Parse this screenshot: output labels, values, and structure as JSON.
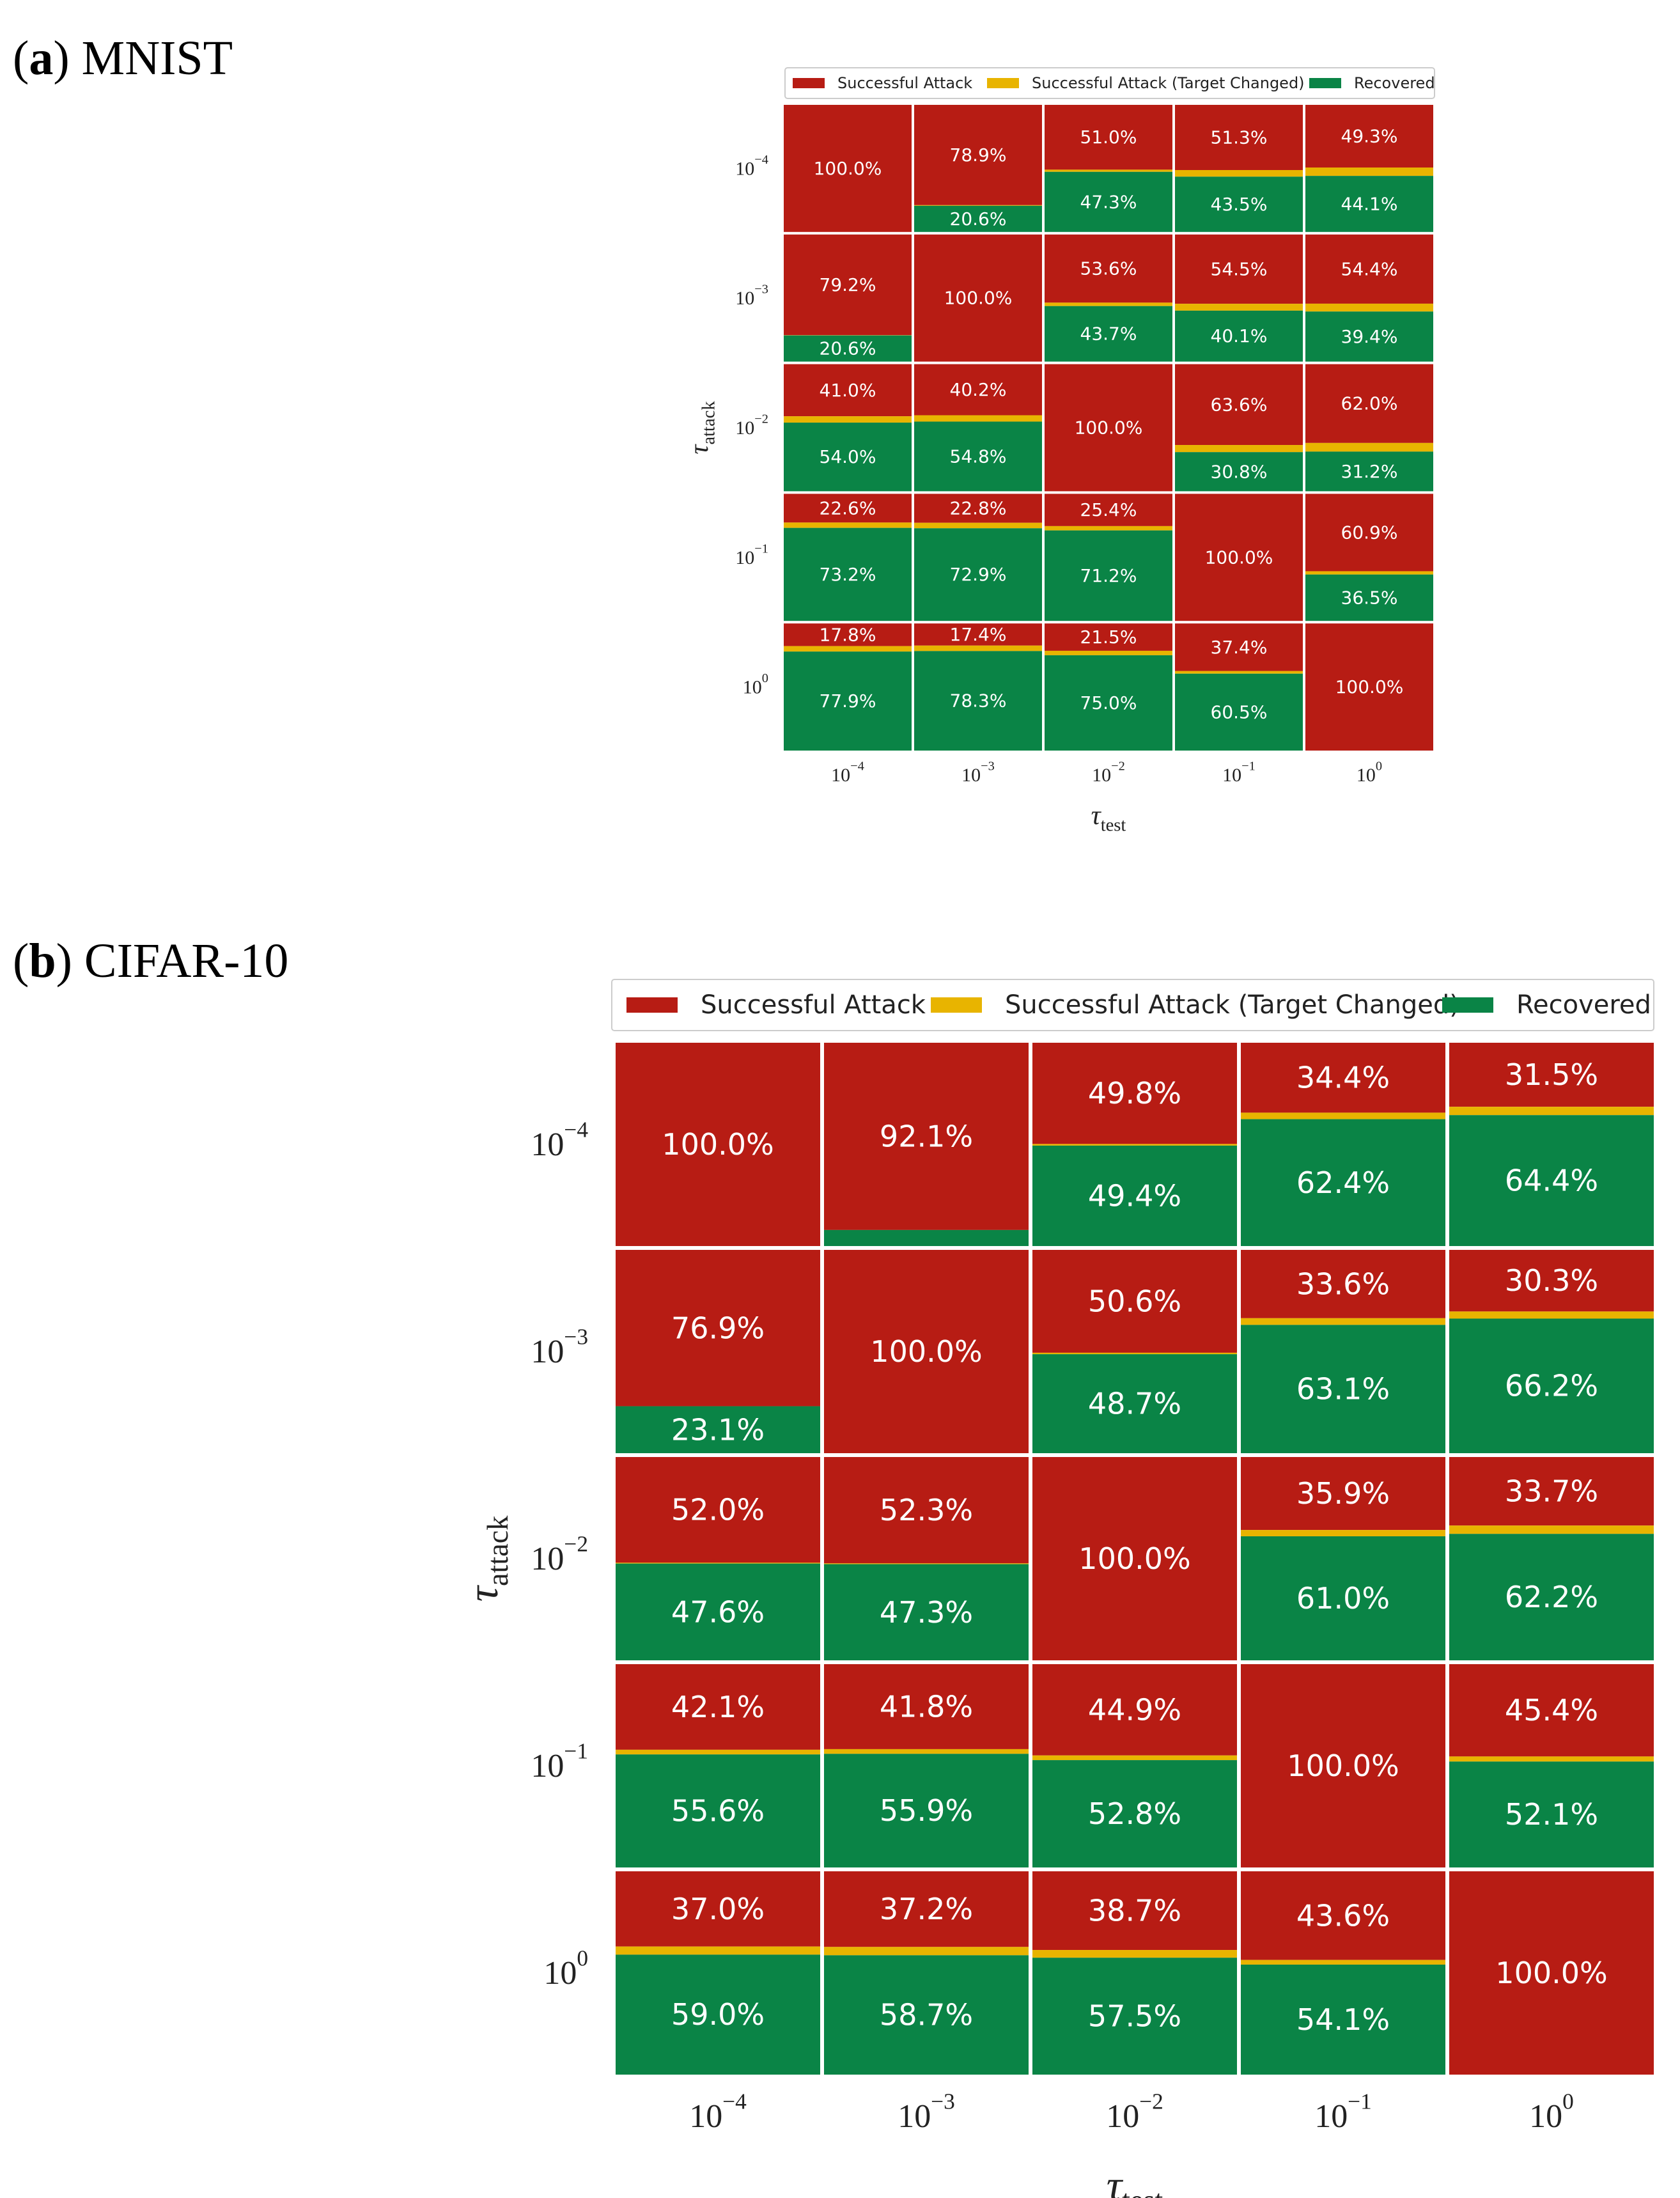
{
  "colors": {
    "successful_attack": "#b71c14",
    "target_changed": "#e8b400",
    "recovered": "#0a8446",
    "cell_text": "#ffffff",
    "axis_text": "#222222"
  },
  "legend_labels": [
    "Successful Attack",
    "Successful Attack (Target Changed)",
    "Recovered"
  ],
  "chart_data": [
    {
      "type": "stacked-bar-grid",
      "panel_letter": "a",
      "panel_name": "MNIST",
      "xlabel_base": "τ",
      "xlabel_sub": "test",
      "ylabel_base": "τ",
      "ylabel_sub": "attack",
      "x_ticks": [
        {
          "base": "10",
          "exp": "−4"
        },
        {
          "base": "10",
          "exp": "−3"
        },
        {
          "base": "10",
          "exp": "−2"
        },
        {
          "base": "10",
          "exp": "−1"
        },
        {
          "base": "10",
          "exp": "0"
        }
      ],
      "y_ticks": [
        {
          "base": "10",
          "exp": "−4"
        },
        {
          "base": "10",
          "exp": "−3"
        },
        {
          "base": "10",
          "exp": "−2"
        },
        {
          "base": "10",
          "exp": "−1"
        },
        {
          "base": "10",
          "exp": "0"
        }
      ],
      "cells": [
        [
          {
            "attack": 100.0,
            "recovered": 0.0
          },
          {
            "attack": 78.9,
            "recovered": 20.6
          },
          {
            "attack": 51.0,
            "recovered": 47.3
          },
          {
            "attack": 51.3,
            "recovered": 43.5
          },
          {
            "attack": 49.3,
            "recovered": 44.1
          }
        ],
        [
          {
            "attack": 79.2,
            "recovered": 20.6
          },
          {
            "attack": 100.0,
            "recovered": 0.0
          },
          {
            "attack": 53.6,
            "recovered": 43.7
          },
          {
            "attack": 54.5,
            "recovered": 40.1
          },
          {
            "attack": 54.4,
            "recovered": 39.4
          }
        ],
        [
          {
            "attack": 41.0,
            "recovered": 54.0
          },
          {
            "attack": 40.2,
            "recovered": 54.8
          },
          {
            "attack": 100.0,
            "recovered": 0.0
          },
          {
            "attack": 63.6,
            "recovered": 30.8
          },
          {
            "attack": 62.0,
            "recovered": 31.2
          }
        ],
        [
          {
            "attack": 22.6,
            "recovered": 73.2
          },
          {
            "attack": 22.8,
            "recovered": 72.9
          },
          {
            "attack": 25.4,
            "recovered": 71.2
          },
          {
            "attack": 100.0,
            "recovered": 0.0
          },
          {
            "attack": 60.9,
            "recovered": 36.5
          }
        ],
        [
          {
            "attack": 17.8,
            "recovered": 77.9
          },
          {
            "attack": 17.4,
            "recovered": 78.3
          },
          {
            "attack": 21.5,
            "recovered": 75.0
          },
          {
            "attack": 37.4,
            "recovered": 60.5
          },
          {
            "attack": 100.0,
            "recovered": 0.0
          }
        ]
      ]
    },
    {
      "type": "stacked-bar-grid",
      "panel_letter": "b",
      "panel_name": "CIFAR-10",
      "xlabel_base": "τ",
      "xlabel_sub": "test",
      "ylabel_base": "τ",
      "ylabel_sub": "attack",
      "x_ticks": [
        {
          "base": "10",
          "exp": "−4"
        },
        {
          "base": "10",
          "exp": "−3"
        },
        {
          "base": "10",
          "exp": "−2"
        },
        {
          "base": "10",
          "exp": "−1"
        },
        {
          "base": "10",
          "exp": "0"
        }
      ],
      "y_ticks": [
        {
          "base": "10",
          "exp": "−4"
        },
        {
          "base": "10",
          "exp": "−3"
        },
        {
          "base": "10",
          "exp": "−2"
        },
        {
          "base": "10",
          "exp": "−1"
        },
        {
          "base": "10",
          "exp": "0"
        }
      ],
      "cells": [
        [
          {
            "attack": 100.0,
            "recovered": 0.0
          },
          {
            "attack": 92.1,
            "recovered": null
          },
          {
            "attack": 49.8,
            "recovered": 49.4
          },
          {
            "attack": 34.4,
            "recovered": 62.4
          },
          {
            "attack": 31.5,
            "recovered": 64.4
          }
        ],
        [
          {
            "attack": 76.9,
            "recovered": 23.1
          },
          {
            "attack": 100.0,
            "recovered": 0.0
          },
          {
            "attack": 50.6,
            "recovered": 48.7
          },
          {
            "attack": 33.6,
            "recovered": 63.1
          },
          {
            "attack": 30.3,
            "recovered": 66.2
          }
        ],
        [
          {
            "attack": 52.0,
            "recovered": 47.6
          },
          {
            "attack": 52.3,
            "recovered": 47.3
          },
          {
            "attack": 100.0,
            "recovered": 0.0
          },
          {
            "attack": 35.9,
            "recovered": 61.0
          },
          {
            "attack": 33.7,
            "recovered": 62.2
          }
        ],
        [
          {
            "attack": 42.1,
            "recovered": 55.6
          },
          {
            "attack": 41.8,
            "recovered": 55.9
          },
          {
            "attack": 44.9,
            "recovered": 52.8
          },
          {
            "attack": 100.0,
            "recovered": 0.0
          },
          {
            "attack": 45.4,
            "recovered": 52.1
          }
        ],
        [
          {
            "attack": 37.0,
            "recovered": 59.0
          },
          {
            "attack": 37.2,
            "recovered": 58.7
          },
          {
            "attack": 38.7,
            "recovered": 57.5
          },
          {
            "attack": 43.6,
            "recovered": 54.1
          },
          {
            "attack": 100.0,
            "recovered": 0.0
          }
        ]
      ]
    }
  ]
}
